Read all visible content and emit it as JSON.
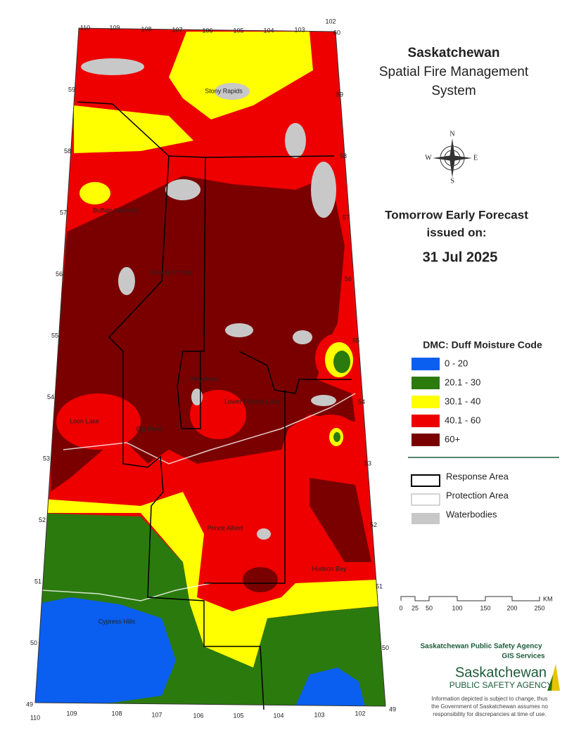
{
  "header": {
    "title": "Saskatchewan",
    "subtitle_lines": [
      "Spatial Fire Management",
      "System"
    ]
  },
  "compass": {
    "letters": [
      "N",
      "E",
      "S",
      "W"
    ]
  },
  "forecast": {
    "lines": [
      "Tomorrow Early Forecast",
      "issued on:"
    ],
    "date": "31 Jul 2025"
  },
  "legend": {
    "title": "DMC: Duff Moisture Code",
    "items": [
      {
        "label": "0 - 20",
        "color": "#0a5ef0"
      },
      {
        "label": "20.1 - 30",
        "color": "#2b7a0e"
      },
      {
        "label": "30.1 - 40",
        "color": "#ffff00"
      },
      {
        "label": "40.1 - 60",
        "color": "#ee0000"
      },
      {
        "label": "60+",
        "color": "#7a0000"
      }
    ]
  },
  "boundaries": {
    "items": [
      "Response Area",
      "Protection Area",
      "Waterbodies"
    ]
  },
  "scale": {
    "labels": [
      "0",
      "25",
      "50",
      "100",
      "150",
      "200",
      "250"
    ],
    "unit": "KM"
  },
  "map": {
    "top_labels": [
      "110",
      "109",
      "108",
      "107",
      "106",
      "105",
      "104",
      "103",
      "102",
      "60"
    ],
    "bottom_labels": [
      "110",
      "109",
      "108",
      "107",
      "106",
      "105",
      "104",
      "103",
      "102"
    ],
    "left_labels": [
      "59",
      "58",
      "57",
      "56",
      "55",
      "54",
      "53",
      "52",
      "51",
      "50",
      "49"
    ],
    "right_labels": [
      "59",
      "58",
      "57",
      "56",
      "55",
      "54",
      "53",
      "52",
      "51",
      "50",
      "49"
    ],
    "places": [
      "Stony Rapids",
      "Buffalo Narrows",
      "Ile-a-la-Crosse",
      "Weyakwin",
      "Lower Fishing Lake",
      "Big River",
      "Loon Lake",
      "Prince Albert",
      "Hudson Bay",
      "Cypress Hills"
    ]
  },
  "footer": {
    "agency": "Saskatchewan Public Safety Agency",
    "unit": "GIS  Services",
    "logo_name": "Saskatchewan",
    "logo_sub": "PUBLIC SAFETY AGENCY",
    "disclaimer": [
      "Information depicted is subject to change, thus",
      "the Government of Saskatchewan assumes no",
      "responsibility for discrepancies at time of use."
    ]
  }
}
